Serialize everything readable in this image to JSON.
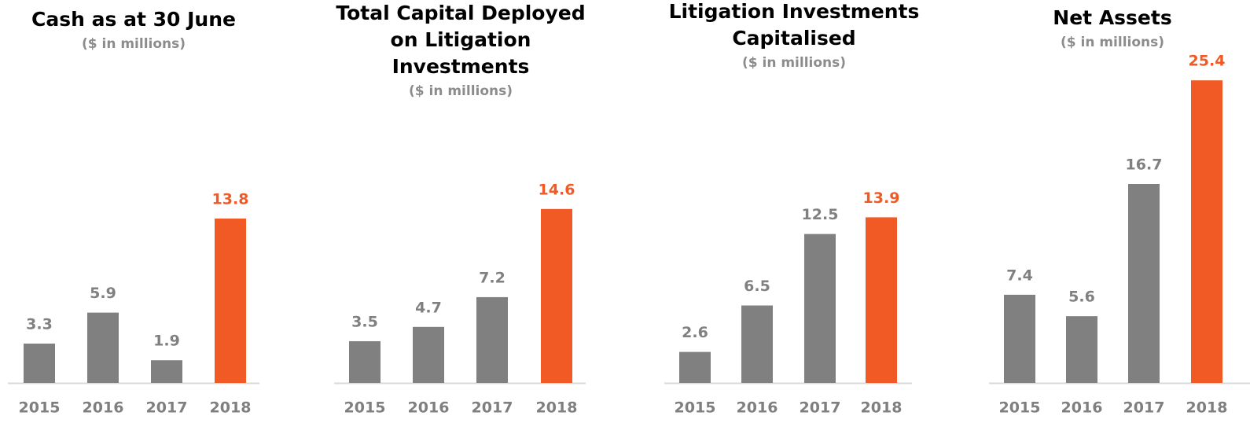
{
  "chart_data": [
    {
      "type": "bar",
      "title": [
        "Cash as at 30 June"
      ],
      "subtitle": "($ in millions)",
      "categories": [
        "2015",
        "2016",
        "2017",
        "2018"
      ],
      "values": [
        3.3,
        5.9,
        1.9,
        13.8
      ],
      "colors": [
        "#808080",
        "#808080",
        "#808080",
        "#f15a24"
      ]
    },
    {
      "type": "bar",
      "title": [
        "Total Capital Deployed",
        "on Litigation",
        "Investments"
      ],
      "subtitle": "($ in millions)",
      "categories": [
        "2015",
        "2016",
        "2017",
        "2018"
      ],
      "values": [
        3.5,
        4.7,
        7.2,
        14.6
      ],
      "colors": [
        "#808080",
        "#808080",
        "#808080",
        "#f15a24"
      ]
    },
    {
      "type": "bar",
      "title": [
        "Litigation Investments",
        "Capitalised"
      ],
      "subtitle": "($ in millions)",
      "categories": [
        "2015",
        "2016",
        "2017",
        "2018"
      ],
      "values": [
        2.6,
        6.5,
        12.5,
        13.9
      ],
      "colors": [
        "#808080",
        "#808080",
        "#808080",
        "#f15a24"
      ]
    },
    {
      "type": "bar",
      "title": [
        "Net Assets"
      ],
      "subtitle": "($ in millions)",
      "categories": [
        "2015",
        "2016",
        "2017",
        "2018"
      ],
      "values": [
        7.4,
        5.6,
        16.7,
        25.4
      ],
      "colors": [
        "#808080",
        "#808080",
        "#808080",
        "#f15a24"
      ]
    }
  ]
}
